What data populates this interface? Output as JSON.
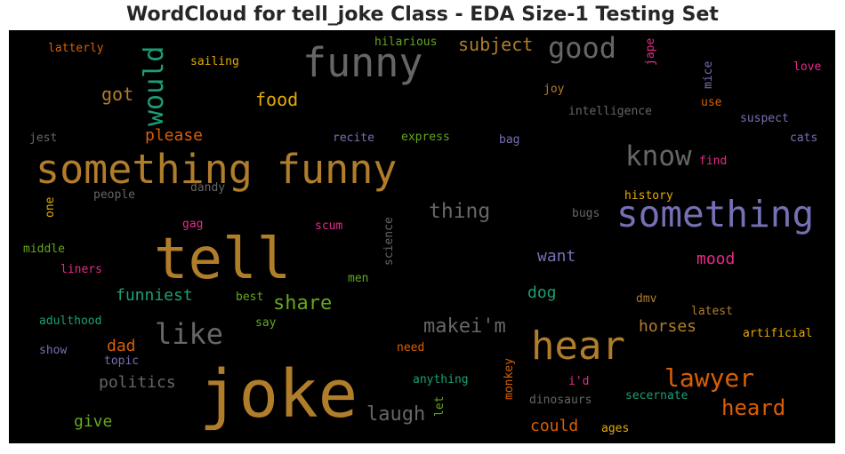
{
  "title": "WordCloud for tell_joke Class - EDA Size-1 Testing Set",
  "colors": {
    "gold": "#b07d2b",
    "orange": "#d95f02",
    "green": "#66a61e",
    "teal": "#1b9e77",
    "purple": "#7570b3",
    "pink": "#e7298a",
    "yellow": "#e6ab02",
    "gray": "#666666"
  },
  "words": [
    {
      "text": "joke",
      "color": "gold"
    },
    {
      "text": "tell",
      "color": "gold"
    },
    {
      "text": "something funny",
      "color": "gold"
    },
    {
      "text": "something",
      "color": "purple"
    },
    {
      "text": "funny",
      "color": "gray"
    },
    {
      "text": "hear",
      "color": "gold"
    },
    {
      "text": "good",
      "color": "gray"
    },
    {
      "text": "know",
      "color": "gray"
    },
    {
      "text": "like",
      "color": "gray"
    },
    {
      "text": "lawyer",
      "color": "orange"
    },
    {
      "text": "would",
      "color": "teal"
    },
    {
      "text": "heard",
      "color": "orange"
    },
    {
      "text": "thing",
      "color": "gray"
    },
    {
      "text": "share",
      "color": "green"
    },
    {
      "text": "laugh",
      "color": "gray"
    },
    {
      "text": "makei'm",
      "color": "gray"
    },
    {
      "text": "subject",
      "color": "gold"
    },
    {
      "text": "food",
      "color": "yellow"
    },
    {
      "text": "got",
      "color": "gold"
    },
    {
      "text": "please",
      "color": "orange"
    },
    {
      "text": "funniest",
      "color": "teal"
    },
    {
      "text": "dad",
      "color": "orange"
    },
    {
      "text": "politics",
      "color": "gray"
    },
    {
      "text": "give",
      "color": "green"
    },
    {
      "text": "mood",
      "color": "pink"
    },
    {
      "text": "want",
      "color": "purple"
    },
    {
      "text": "horses",
      "color": "gold"
    },
    {
      "text": "dog",
      "color": "teal"
    },
    {
      "text": "could",
      "color": "orange"
    },
    {
      "text": "latterly",
      "color": "orange"
    },
    {
      "text": "sailing",
      "color": "yellow"
    },
    {
      "text": "hilarious",
      "color": "green"
    },
    {
      "text": "jape",
      "color": "pink"
    },
    {
      "text": "love",
      "color": "pink"
    },
    {
      "text": "mice",
      "color": "purple"
    },
    {
      "text": "joy",
      "color": "gold"
    },
    {
      "text": "intelligence",
      "color": "gray"
    },
    {
      "text": "use",
      "color": "orange"
    },
    {
      "text": "suspect",
      "color": "purple"
    },
    {
      "text": "cats",
      "color": "purple"
    },
    {
      "text": "jest",
      "color": "gray"
    },
    {
      "text": "recite",
      "color": "purple"
    },
    {
      "text": "express",
      "color": "green"
    },
    {
      "text": "bag",
      "color": "purple"
    },
    {
      "text": "find",
      "color": "pink"
    },
    {
      "text": "one",
      "color": "yellow"
    },
    {
      "text": "people",
      "color": "gray"
    },
    {
      "text": "dandy",
      "color": "gray"
    },
    {
      "text": "history",
      "color": "yellow"
    },
    {
      "text": "gag",
      "color": "pink"
    },
    {
      "text": "scum",
      "color": "pink"
    },
    {
      "text": "science",
      "color": "gray"
    },
    {
      "text": "bugs",
      "color": "gray"
    },
    {
      "text": "middle",
      "color": "green"
    },
    {
      "text": "liners",
      "color": "pink"
    },
    {
      "text": "men",
      "color": "green"
    },
    {
      "text": "best",
      "color": "green"
    },
    {
      "text": "dmv",
      "color": "gold"
    },
    {
      "text": "adulthood",
      "color": "teal"
    },
    {
      "text": "say",
      "color": "green"
    },
    {
      "text": "latest",
      "color": "gold"
    },
    {
      "text": "artificial",
      "color": "yellow"
    },
    {
      "text": "show",
      "color": "purple"
    },
    {
      "text": "topic",
      "color": "purple"
    },
    {
      "text": "need",
      "color": "orange"
    },
    {
      "text": "monkey",
      "color": "orange"
    },
    {
      "text": "anything",
      "color": "teal"
    },
    {
      "text": "let",
      "color": "green"
    },
    {
      "text": "i'd",
      "color": "pink"
    },
    {
      "text": "secernate",
      "color": "teal"
    },
    {
      "text": "dinosaurs",
      "color": "gray"
    },
    {
      "text": "ages",
      "color": "yellow"
    }
  ]
}
